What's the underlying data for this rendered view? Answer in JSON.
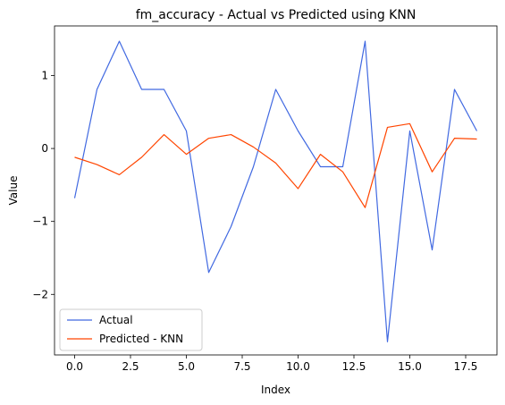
{
  "chart_data": {
    "type": "line",
    "title": "fm_accuracy - Actual vs Predicted using KNN",
    "xlabel": "Index",
    "ylabel": "Value",
    "xlim": [
      -0.9,
      18.9
    ],
    "ylim": [
      -2.83,
      1.68
    ],
    "x_ticks": [
      0.0,
      2.5,
      5.0,
      7.5,
      10.0,
      12.5,
      15.0,
      17.5
    ],
    "x_tick_labels": [
      "0.0",
      "2.5",
      "5.0",
      "7.5",
      "10.0",
      "12.5",
      "15.0",
      "17.5"
    ],
    "y_ticks": [
      -2,
      -1,
      0,
      1
    ],
    "y_tick_labels": [
      "−2",
      "−1",
      "0",
      "1"
    ],
    "grid": false,
    "legend_position": "lower-left",
    "x": [
      0,
      1,
      2,
      3,
      4,
      5,
      6,
      7,
      8,
      9,
      10,
      11,
      12,
      13,
      14,
      15,
      16,
      17,
      18
    ],
    "series": [
      {
        "name": "Actual",
        "color": "#4169e1",
        "values": [
          -0.68,
          0.81,
          1.47,
          0.81,
          0.81,
          0.24,
          -1.7,
          -1.07,
          -0.25,
          0.81,
          0.24,
          -0.25,
          -0.25,
          1.47,
          -2.65,
          0.24,
          -1.39,
          0.81,
          0.24
        ]
      },
      {
        "name": "Predicted - KNN",
        "color": "#ff4500",
        "values": [
          -0.12,
          -0.22,
          -0.36,
          -0.12,
          0.19,
          -0.08,
          0.14,
          0.19,
          0.02,
          -0.2,
          -0.55,
          -0.08,
          -0.32,
          -0.81,
          0.29,
          0.34,
          -0.32,
          0.14,
          0.13
        ]
      }
    ]
  }
}
